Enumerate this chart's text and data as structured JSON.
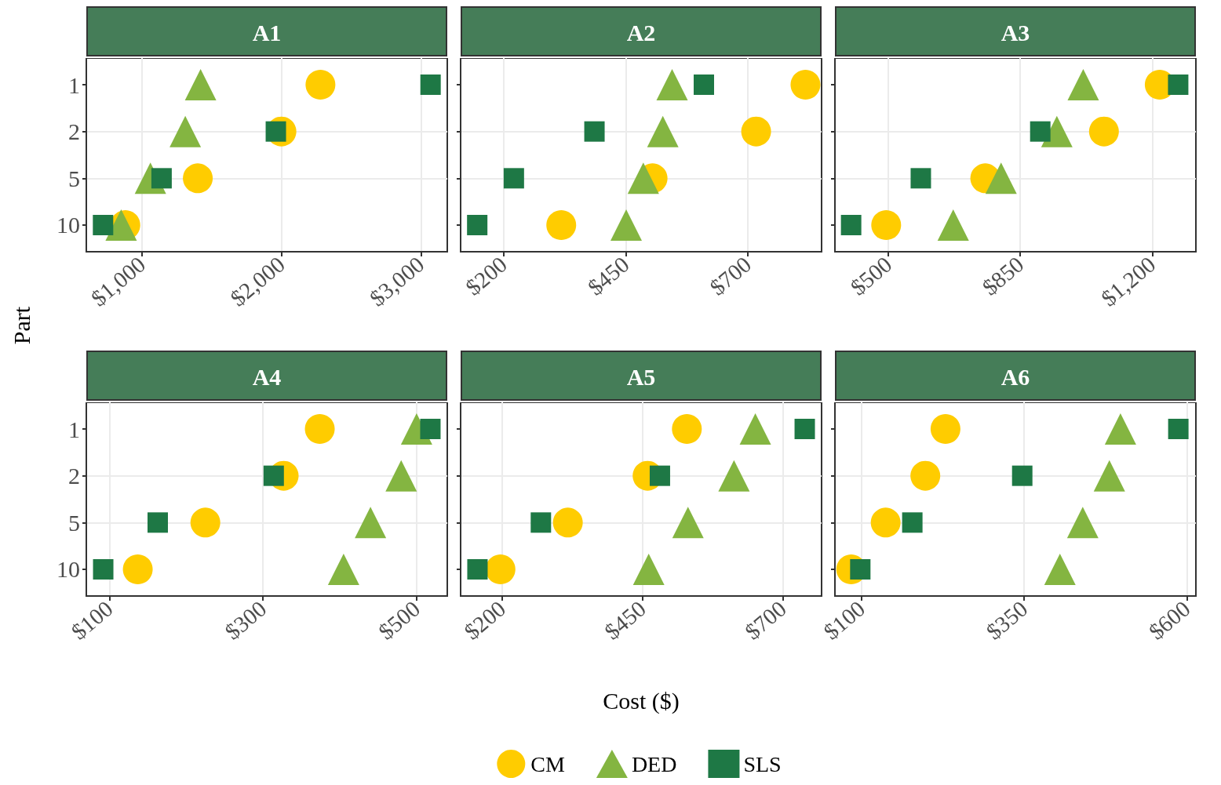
{
  "chart_data": [
    {
      "type": "scatter",
      "title": "A1",
      "ylabel": "Part",
      "orientation": "horizontal",
      "categories": [
        "1",
        "2",
        "5",
        "10"
      ],
      "xlim": [
        600,
        3190
      ],
      "xticks": [
        {
          "value": 1000,
          "label": "$1,000"
        },
        {
          "value": 2000,
          "label": "$2,000"
        },
        {
          "value": 3000,
          "label": "$3,000"
        }
      ],
      "grid": true,
      "series": [
        {
          "color": "#ffcc00",
          "marker": "circle",
          "values": [
            2280,
            2000,
            1400,
            880
          ]
        },
        {
          "color": "#84b541",
          "marker": "triangle",
          "values": [
            1420,
            1310,
            1060,
            850
          ]
        },
        {
          "color": "#1e7845",
          "marker": "square",
          "values": [
            3070,
            1960,
            1140,
            720
          ]
        }
      ]
    },
    {
      "type": "scatter",
      "title": "A2",
      "orientation": "horizontal",
      "categories": [
        "1",
        "2",
        "5",
        "10"
      ],
      "xlim": [
        112,
        851
      ],
      "xticks": [
        {
          "value": 200,
          "label": "$200"
        },
        {
          "value": 450,
          "label": "$450"
        },
        {
          "value": 700,
          "label": "$700"
        }
      ],
      "grid": true,
      "tick_labels": "x",
      "series": [
        {
          "color": "#ffcc00",
          "marker": "circle",
          "values": [
            818,
            717,
            505,
            318
          ]
        },
        {
          "color": "#84b541",
          "marker": "triangle",
          "values": [
            545,
            526,
            486,
            451
          ]
        },
        {
          "color": "#1e7845",
          "marker": "square",
          "values": [
            610,
            386,
            221,
            146
          ]
        }
      ]
    },
    {
      "type": "scatter",
      "title": "A3",
      "orientation": "horizontal",
      "categories": [
        "1",
        "2",
        "5",
        "10"
      ],
      "xlim": [
        358,
        1316
      ],
      "xticks": [
        {
          "value": 500,
          "label": "$500"
        },
        {
          "value": 850,
          "label": "$850"
        },
        {
          "value": 1200,
          "label": "$1,200"
        }
      ],
      "grid": true,
      "tick_labels": "x",
      "series": [
        {
          "color": "#ffcc00",
          "marker": "circle",
          "values": [
            1220,
            1072,
            757,
            494
          ]
        },
        {
          "color": "#84b541",
          "marker": "triangle",
          "values": [
            1017,
            947,
            799,
            672
          ]
        },
        {
          "color": "#1e7845",
          "marker": "square",
          "values": [
            1269,
            903,
            586,
            401
          ]
        }
      ]
    },
    {
      "type": "scatter",
      "title": "A4",
      "orientation": "horizontal",
      "categories": [
        "1",
        "2",
        "5",
        "10"
      ],
      "xlim": [
        70,
        540
      ],
      "xticks": [
        {
          "value": 100,
          "label": "$100"
        },
        {
          "value": 300,
          "label": "$300"
        },
        {
          "value": 500,
          "label": "$500"
        }
      ],
      "grid": true,
      "series": [
        {
          "color": "#ffcc00",
          "marker": "circle",
          "values": [
            374,
            327,
            225,
            137
          ]
        },
        {
          "color": "#84b541",
          "marker": "triangle",
          "values": [
            500,
            480,
            440,
            405
          ]
        },
        {
          "color": "#1e7845",
          "marker": "square",
          "values": [
            518,
            314,
            163,
            92
          ]
        }
      ]
    },
    {
      "type": "scatter",
      "title": "A5",
      "xlabel": "Cost ($)",
      "orientation": "horizontal",
      "legend": "bottom",
      "categories": [
        "1",
        "2",
        "5",
        "10"
      ],
      "xlim": [
        126,
        769
      ],
      "xticks": [
        {
          "value": 200,
          "label": "$200"
        },
        {
          "value": 450,
          "label": "$450"
        },
        {
          "value": 700,
          "label": "$700"
        }
      ],
      "grid": true,
      "tick_labels": "x",
      "series": [
        {
          "name": "CM",
          "color": "#ffcc00",
          "marker": "circle",
          "values": [
            529,
            459,
            317,
            197
          ]
        },
        {
          "name": "DED",
          "color": "#84b541",
          "marker": "triangle",
          "values": [
            651,
            613,
            531,
            461
          ]
        },
        {
          "name": "SLS",
          "color": "#1e7845",
          "marker": "square",
          "values": [
            739,
            481,
            269,
            156
          ]
        }
      ]
    },
    {
      "type": "scatter",
      "title": "A6",
      "orientation": "horizontal",
      "categories": [
        "1",
        "2",
        "5",
        "10"
      ],
      "xlim": [
        59,
        614
      ],
      "xticks": [
        {
          "value": 100,
          "label": "$100"
        },
        {
          "value": 350,
          "label": "$350"
        },
        {
          "value": 600,
          "label": "$600"
        }
      ],
      "grid": true,
      "tick_labels": "x",
      "series": [
        {
          "color": "#ffcc00",
          "marker": "circle",
          "values": [
            229,
            198,
            137,
            84
          ]
        },
        {
          "color": "#84b541",
          "marker": "triangle",
          "values": [
            498,
            481,
            440,
            405
          ]
        },
        {
          "color": "#1e7845",
          "marker": "square",
          "values": [
            587,
            347,
            178,
            98
          ]
        }
      ]
    }
  ]
}
